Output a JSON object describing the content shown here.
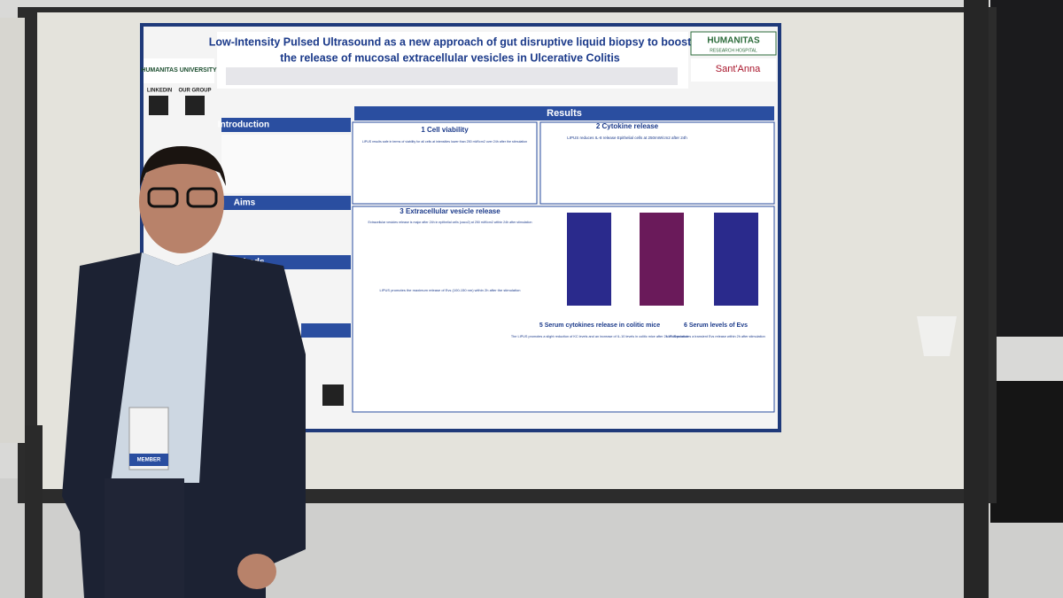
{
  "poster": {
    "title_lines": [
      "Low-Intensity Pulsed Ultrasound as a new approach of gut disruptive liquid biopsy to boost",
      "the release of mucosal extracellular vesicles in Ulcerative Colitis"
    ],
    "logo_left": "HUMANITAS UNIVERSITY",
    "logo_right": "HUMANITAS",
    "logo_right_sub": "RESEARCH HOSPITAL",
    "logo_santanna": "Sant'Anna",
    "linkedin": "LINKEDIN",
    "our_group": "OUR GROUP",
    "introduction": "Introduction",
    "aims": "Aims",
    "methods": "Methods",
    "results": "Results",
    "panels": [
      {
        "heading": "1 Cell viability",
        "text": "LIPUS results safe in terms of viability for all cells at intensities lower than 250 mW/cm2 over 24h after the stimulation"
      },
      {
        "heading": "2 Cytokine release",
        "text": "LIPUS reduces IL-8 release Epithelial cells at 250mW/cm2 after 24h"
      },
      {
        "heading": "3 Extracellular vesicle release",
        "text": "Extracellular vesicles release is major after 24h in epithelial cells (caco2) at 250 mW/cm2 within 24h after stimulation"
      },
      {
        "heading": "5 Serum cytokines release in colitic mice",
        "text": "The LIPUS promotes a slight reduction of KC levels and an increase of IL-10 levels in colitic mice after 2h of stimulation"
      },
      {
        "heading": "6 Serum levels of Evs",
        "text": "LIPUS promotes a transient Evs release within 2h after stimulation"
      }
    ],
    "ev_text": "LIPUS promotes the maximum release of Evs (100-150 nm) within 2h after the stimulation"
  },
  "badge": {
    "label": "MEMBER"
  }
}
